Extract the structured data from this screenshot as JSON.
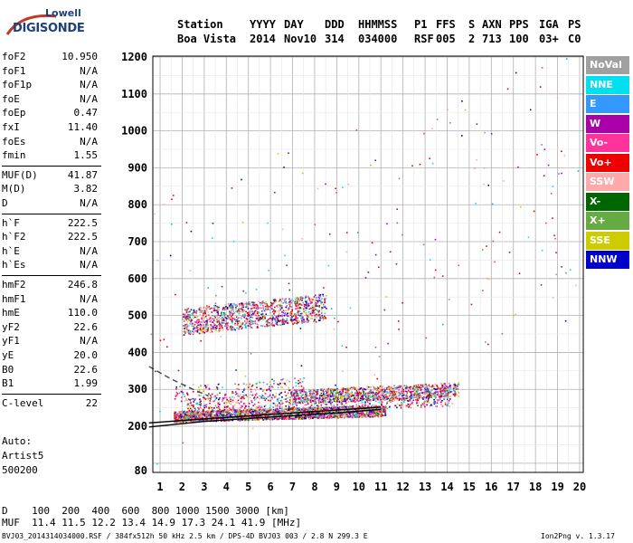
{
  "logo": {
    "line1": "Lowell",
    "line2": "DIGISONDE"
  },
  "header": {
    "columns": [
      {
        "label": "Station",
        "value": "Boa Vista"
      },
      {
        "label": "YYYY",
        "value": "2014"
      },
      {
        "label": "DAY",
        "value": "Nov10"
      },
      {
        "label": "DDD",
        "value": "314"
      },
      {
        "label": "HHMMSS",
        "value": "034000"
      },
      {
        "label": "P1",
        "value": "RSF"
      },
      {
        "label": "FFS",
        "value": "005"
      },
      {
        "label": "S",
        "value": "2"
      },
      {
        "label": "AXN",
        "value": "713"
      },
      {
        "label": "PPS",
        "value": "100"
      },
      {
        "label": "IGA",
        "value": "03+"
      },
      {
        "label": "PS",
        "value": "C0"
      }
    ]
  },
  "params": [
    {
      "label": "foF2",
      "value": "10.950"
    },
    {
      "label": "foF1",
      "value": "N/A"
    },
    {
      "label": "foF1p",
      "value": "N/A"
    },
    {
      "label": "foE",
      "value": "N/A"
    },
    {
      "label": "foEp",
      "value": "0.47"
    },
    {
      "label": "fxI",
      "value": "11.40"
    },
    {
      "label": "foEs",
      "value": "N/A"
    },
    {
      "label": "fmin",
      "value": "1.55"
    },
    {
      "label": "MUF(D)",
      "value": "41.87"
    },
    {
      "label": "M(D)",
      "value": "3.82"
    },
    {
      "label": "D",
      "value": "N/A"
    },
    {
      "label": "h`F",
      "value": "222.5"
    },
    {
      "label": "h`F2",
      "value": "222.5"
    },
    {
      "label": "h`E",
      "value": "N/A"
    },
    {
      "label": "h`Es",
      "value": "N/A"
    },
    {
      "label": "hmF2",
      "value": "246.8"
    },
    {
      "label": "hmF1",
      "value": "N/A"
    },
    {
      "label": "hmE",
      "value": "110.0"
    },
    {
      "label": "yF2",
      "value": "22.6"
    },
    {
      "label": "yF1",
      "value": "N/A"
    },
    {
      "label": "yE",
      "value": "20.0"
    },
    {
      "label": "B0",
      "value": "22.6"
    },
    {
      "label": "B1",
      "value": "1.99"
    },
    {
      "label": "C-level",
      "value": "22"
    }
  ],
  "auto": {
    "line1": "Auto:",
    "line2": "Artist5",
    "line3": "500200"
  },
  "legend": [
    {
      "label": "NoVal",
      "color": "#a0a0a0"
    },
    {
      "label": "NNE",
      "color": "#00e0f0"
    },
    {
      "label": "E",
      "color": "#3399ff"
    },
    {
      "label": "W",
      "color": "#aa00aa"
    },
    {
      "label": "Vo-",
      "color": "#ff3399"
    },
    {
      "label": "Vo+",
      "color": "#ee0000"
    },
    {
      "label": "SSW",
      "color": "#ffaaaa"
    },
    {
      "label": "X-",
      "color": "#006600"
    },
    {
      "label": "X+",
      "color": "#66aa44"
    },
    {
      "label": "SSE",
      "color": "#cccc00"
    },
    {
      "label": "NNW",
      "color": "#0000cc"
    }
  ],
  "mufTable": {
    "dLabel": "D",
    "distances": [
      "100",
      "200",
      "400",
      "600",
      "800",
      "1000",
      "1500",
      "3000"
    ],
    "dUnit": "[km]",
    "mufLabel": "MUF",
    "mufs": [
      "11.4",
      "11.5",
      "12.2",
      "13.4",
      "14.9",
      "17.3",
      "24.1",
      "41.9"
    ],
    "mufUnit": "[MHz]"
  },
  "footer": {
    "left": "BVJ03_2014314034000.RSF / 384fx512h 50 kHz 2.5 km / DPS-4D BVJ03 003 / 2.8 N 299.3 E",
    "right": "Ion2Png v. 1.3.17"
  },
  "chart_data": {
    "type": "scatter",
    "x_ticks": [
      "1",
      "2",
      "3",
      "4",
      "5",
      "6",
      "7",
      "8",
      "9",
      "10",
      "11",
      "12",
      "13",
      "14",
      "15",
      "16",
      "17",
      "18",
      "19",
      "20"
    ],
    "y_ticks": [
      "80",
      "200",
      "300",
      "400",
      "500",
      "600",
      "700",
      "800",
      "900",
      "1000",
      "1100",
      "1200"
    ],
    "xlim": [
      0.5,
      20
    ],
    "ylim": [
      80,
      1220
    ],
    "grid": true,
    "legend_position": "right",
    "clusters": [
      {
        "x": [
          1.6,
          11.2
        ],
        "y": [
          212,
          258
        ],
        "density": 2600
      },
      {
        "x": [
          7.0,
          14.5
        ],
        "y": [
          262,
          320
        ],
        "density": 1000
      },
      {
        "x": [
          2.2,
          14.2
        ],
        "y": [
          232,
          300
        ],
        "density": 800
      },
      {
        "x": [
          1.6,
          7.5
        ],
        "y": [
          268,
          335
        ],
        "density": 200
      },
      {
        "x": [
          2.0,
          8.5
        ],
        "y": [
          448,
          560
        ],
        "density": 1200
      },
      {
        "x": [
          0.5,
          20
        ],
        "y": [
          80,
          1220
        ],
        "density": 200
      }
    ],
    "curves": [
      {
        "x": [
          0.5,
          3,
          6,
          9,
          11
        ],
        "y": [
          198,
          213,
          225,
          236,
          246
        ],
        "style": "solid",
        "color": "#000000"
      },
      {
        "x": [
          0.5,
          3,
          6,
          9,
          11
        ],
        "y": [
          209,
          220,
          232,
          244,
          252
        ],
        "style": "solid",
        "color": "#000000"
      },
      {
        "x": [
          0.5,
          1.5,
          2.5,
          3.2
        ],
        "y": [
          362,
          328,
          300,
          282
        ],
        "style": "dashed",
        "color": "#444444"
      }
    ]
  }
}
